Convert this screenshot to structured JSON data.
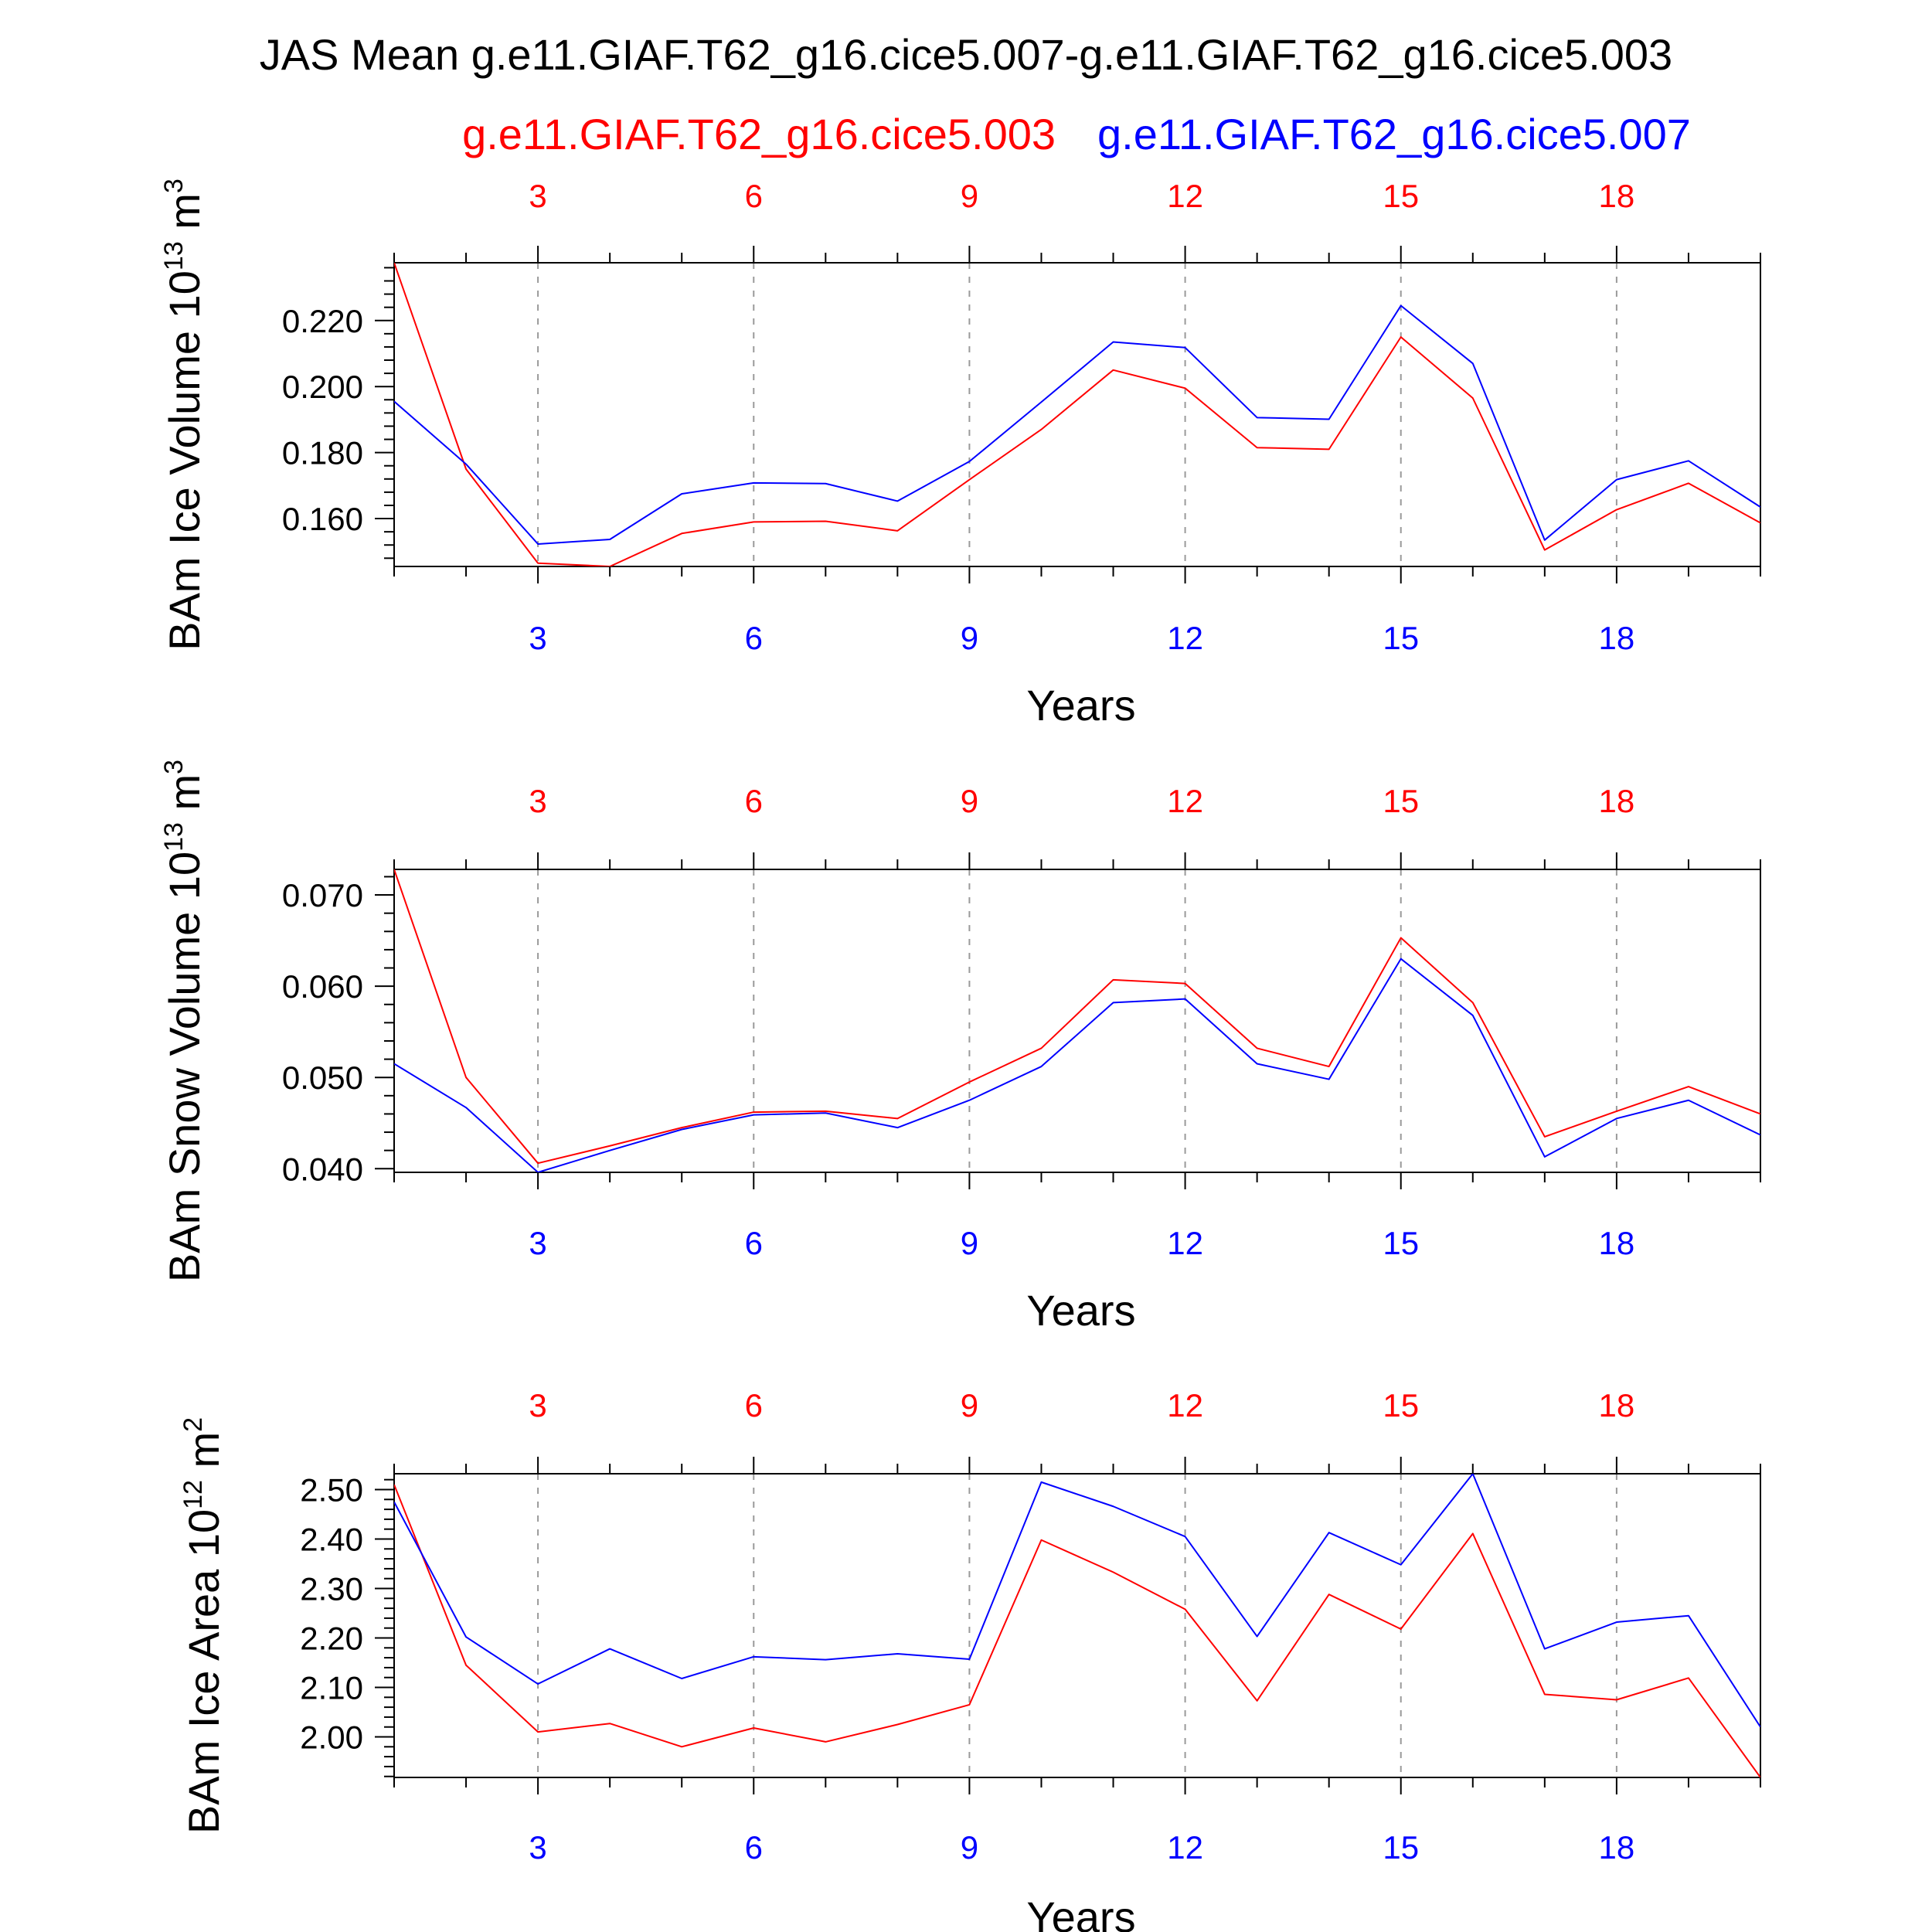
{
  "title": "JAS Mean g.e11.GIAF.T62_g16.cice5.007-g.e11.GIAF.T62_g16.cice5.003",
  "legend": {
    "case_red": "g.e11.GIAF.T62_g16.cice5.003",
    "case_blue": "g.e11.GIAF.T62_g16.cice5.007"
  },
  "colors": {
    "red": "#ff0000",
    "blue": "#0000ff",
    "axis": "#000000",
    "grid": "#9a9a9a"
  },
  "chart_data": [
    {
      "type": "line",
      "ylabel": "BAm Ice Volume 10",
      "ylabel_exp": "13",
      "ylabel_unit": "m",
      "ylabel_unit_exp": "3",
      "xlabel": "Years",
      "xlim": [
        1,
        20
      ],
      "ylim": [
        0.1455,
        0.2375
      ],
      "yticks": [
        0.16,
        0.18,
        0.2,
        0.22
      ],
      "ytick_labels": [
        "0.160",
        "0.180",
        "0.200",
        "0.220"
      ],
      "yminor_step": 0.004,
      "xticks": [
        3,
        6,
        9,
        12,
        15,
        18
      ],
      "xtick_labels": [
        "3",
        "6",
        "9",
        "12",
        "15",
        "18"
      ],
      "x": [
        1,
        2,
        3,
        4,
        5,
        6,
        7,
        8,
        9,
        10,
        11,
        12,
        13,
        14,
        15,
        16,
        17,
        18,
        19,
        20
      ],
      "series": [
        {
          "name": "g.e11.GIAF.T62_g16.cice5.003",
          "color": "red",
          "values": [
            0.2375,
            0.175,
            0.1465,
            0.1455,
            0.1555,
            0.159,
            0.1592,
            0.1563,
            0.1718,
            0.187,
            0.205,
            0.1995,
            0.1815,
            0.181,
            0.215,
            0.1965,
            0.1505,
            0.1627,
            0.1707,
            0.1587
          ]
        },
        {
          "name": "g.e11.GIAF.T62_g16.cice5.007",
          "color": "blue",
          "values": [
            0.1955,
            0.1765,
            0.1523,
            0.1537,
            0.1675,
            0.1708,
            0.1706,
            0.1653,
            0.1773,
            0.1953,
            0.2135,
            0.2118,
            0.1906,
            0.1901,
            0.2245,
            0.207,
            0.1535,
            0.1718,
            0.1775,
            0.1635
          ]
        }
      ]
    },
    {
      "type": "line",
      "ylabel": "BAm Snow Volume 10",
      "ylabel_exp": "13",
      "ylabel_unit": "m",
      "ylabel_unit_exp": "3",
      "xlabel": "Years",
      "xlim": [
        1,
        20
      ],
      "ylim": [
        0.0396,
        0.0728
      ],
      "yticks": [
        0.04,
        0.05,
        0.06,
        0.07
      ],
      "ytick_labels": [
        "0.040",
        "0.050",
        "0.060",
        "0.070"
      ],
      "yminor_step": 0.002,
      "xticks": [
        3,
        6,
        9,
        12,
        15,
        18
      ],
      "xtick_labels": [
        "3",
        "6",
        "9",
        "12",
        "15",
        "18"
      ],
      "x": [
        1,
        2,
        3,
        4,
        5,
        6,
        7,
        8,
        9,
        10,
        11,
        12,
        13,
        14,
        15,
        16,
        17,
        18,
        19,
        20
      ],
      "series": [
        {
          "name": "g.e11.GIAF.T62_g16.cice5.003",
          "color": "red",
          "values": [
            0.0728,
            0.05,
            0.0406,
            0.0425,
            0.0445,
            0.0462,
            0.0463,
            0.0455,
            0.0495,
            0.0532,
            0.0607,
            0.0603,
            0.0532,
            0.0512,
            0.0653,
            0.0582,
            0.0435,
            0.0463,
            0.049,
            0.046
          ]
        },
        {
          "name": "g.e11.GIAF.T62_g16.cice5.007",
          "color": "blue",
          "values": [
            0.0515,
            0.0467,
            0.0396,
            0.042,
            0.0443,
            0.0459,
            0.0461,
            0.0445,
            0.0475,
            0.0512,
            0.0582,
            0.0586,
            0.0515,
            0.0498,
            0.063,
            0.0568,
            0.0413,
            0.0455,
            0.0475,
            0.0437
          ]
        }
      ]
    },
    {
      "type": "line",
      "ylabel": "BAm Ice Area 10",
      "ylabel_exp": "12",
      "ylabel_unit": "m",
      "ylabel_unit_exp": "2",
      "xlabel": "Years",
      "xlim": [
        1,
        20
      ],
      "ylim": [
        1.918,
        2.532
      ],
      "yticks": [
        2.0,
        2.1,
        2.2,
        2.3,
        2.4,
        2.5
      ],
      "ytick_labels": [
        "2.00",
        "2.10",
        "2.20",
        "2.30",
        "2.40",
        "2.50"
      ],
      "yminor_step": 0.02,
      "xticks": [
        3,
        6,
        9,
        12,
        15,
        18
      ],
      "xtick_labels": [
        "3",
        "6",
        "9",
        "12",
        "15",
        "18"
      ],
      "x": [
        1,
        2,
        3,
        4,
        5,
        6,
        7,
        8,
        9,
        10,
        11,
        12,
        13,
        14,
        15,
        16,
        17,
        18,
        19,
        20
      ],
      "series": [
        {
          "name": "g.e11.GIAF.T62_g16.cice5.003",
          "color": "red",
          "values": [
            2.51,
            2.145,
            2.01,
            2.027,
            1.98,
            2.018,
            1.99,
            2.025,
            2.065,
            2.398,
            2.333,
            2.258,
            2.073,
            2.288,
            2.218,
            2.411,
            2.086,
            2.075,
            2.119,
            1.918
          ]
        },
        {
          "name": "g.e11.GIAF.T62_g16.cice5.007",
          "color": "blue",
          "values": [
            2.475,
            2.202,
            2.107,
            2.178,
            2.118,
            2.162,
            2.156,
            2.168,
            2.157,
            2.515,
            2.466,
            2.405,
            2.203,
            2.413,
            2.348,
            2.532,
            2.178,
            2.232,
            2.245,
            2.02
          ]
        }
      ]
    }
  ]
}
